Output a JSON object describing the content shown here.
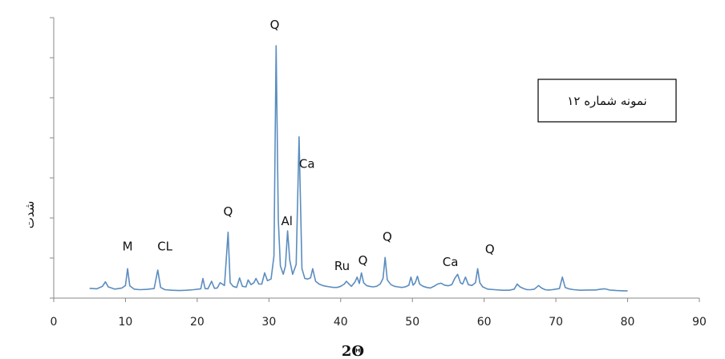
{
  "chart_data": {
    "type": "line",
    "title": "",
    "xlabel": "2Θ",
    "ylabel": "شدت",
    "xlim": [
      0,
      90
    ],
    "xticks": [
      "0",
      "10",
      "20",
      "30",
      "40",
      "50",
      "60",
      "70",
      "80",
      "90"
    ],
    "ylim": [
      0,
      100
    ],
    "grid": false,
    "legend_box": {
      "text": "نمونه شماره ۱۲",
      "position": "top-right"
    },
    "series": [
      {
        "color": "#5b8dbf",
        "x": [
          5.0,
          6.0,
          6.8,
          7.2,
          7.6,
          8.5,
          9.5,
          10.0,
          10.3,
          10.6,
          11.2,
          12.0,
          13.0,
          14.0,
          14.5,
          14.9,
          15.5,
          16.5,
          17.5,
          18.5,
          19.5,
          20.5,
          20.8,
          21.1,
          21.5,
          22.0,
          22.4,
          22.8,
          23.2,
          23.8,
          24.3,
          24.6,
          25.0,
          25.5,
          25.9,
          26.3,
          26.8,
          27.1,
          27.5,
          27.9,
          28.2,
          28.6,
          29.0,
          29.4,
          29.8,
          30.3,
          30.7,
          31.0,
          31.3,
          31.6,
          32.0,
          32.3,
          32.6,
          32.9,
          33.3,
          33.8,
          34.2,
          34.6,
          35.0,
          35.4,
          35.8,
          36.1,
          36.5,
          37.0,
          37.5,
          38.0,
          38.5,
          39.0,
          39.5,
          40.0,
          40.5,
          40.8,
          41.1,
          41.5,
          42.0,
          42.3,
          42.6,
          42.9,
          43.2,
          43.6,
          44.0,
          44.5,
          45.0,
          45.5,
          45.9,
          46.2,
          46.5,
          47.0,
          47.5,
          48.0,
          48.5,
          49.0,
          49.5,
          49.8,
          50.1,
          50.4,
          50.7,
          51.0,
          51.5,
          52.0,
          52.5,
          53.0,
          53.5,
          54.0,
          54.5,
          55.0,
          55.5,
          55.9,
          56.3,
          56.7,
          57.0,
          57.4,
          57.8,
          58.3,
          58.8,
          59.1,
          59.4,
          59.8,
          60.5,
          61.5,
          62.5,
          63.5,
          64.2,
          64.6,
          65.0,
          65.5,
          66.0,
          66.5,
          67.0,
          67.6,
          68.0,
          68.5,
          69.0,
          69.5,
          70.0,
          70.5,
          70.9,
          71.3,
          71.8,
          72.5,
          73.5,
          74.5,
          75.5,
          76.3,
          76.8,
          77.5,
          78.5,
          79.5,
          80.0
        ],
        "y": [
          3.5,
          3.3,
          4.2,
          5.8,
          4.0,
          3.2,
          3.6,
          4.5,
          10.5,
          4.4,
          3.2,
          3.0,
          3.1,
          3.4,
          10.0,
          3.8,
          3.0,
          2.8,
          2.7,
          2.8,
          3.0,
          3.3,
          7.0,
          3.4,
          3.3,
          6.0,
          3.5,
          3.6,
          5.5,
          4.5,
          23.5,
          5.5,
          4.2,
          3.8,
          7.2,
          4.2,
          4.0,
          6.5,
          4.8,
          5.5,
          7.0,
          5.0,
          5.0,
          9.0,
          6.2,
          6.8,
          15.0,
          90.0,
          28.0,
          11.5,
          8.5,
          11.5,
          24.0,
          13.5,
          8.5,
          12.0,
          57.5,
          10.5,
          7.0,
          6.8,
          7.2,
          10.5,
          6.0,
          5.0,
          4.5,
          4.2,
          4.0,
          3.8,
          3.8,
          4.2,
          5.0,
          6.0,
          5.2,
          4.2,
          5.8,
          7.5,
          5.2,
          9.0,
          5.5,
          4.5,
          4.2,
          4.0,
          4.2,
          5.0,
          7.0,
          14.5,
          6.5,
          4.8,
          4.2,
          4.0,
          3.8,
          4.0,
          4.6,
          7.5,
          4.6,
          5.5,
          7.8,
          5.0,
          4.2,
          3.8,
          3.6,
          4.2,
          5.0,
          5.3,
          4.6,
          4.4,
          4.8,
          7.0,
          8.5,
          5.5,
          5.0,
          7.5,
          4.8,
          4.5,
          5.5,
          10.5,
          5.5,
          4.0,
          3.2,
          3.0,
          2.8,
          2.8,
          3.2,
          5.0,
          4.0,
          3.4,
          3.0,
          3.0,
          3.2,
          4.5,
          3.6,
          3.0,
          2.9,
          3.0,
          3.2,
          3.4,
          7.5,
          3.8,
          3.3,
          3.0,
          2.8,
          2.9,
          2.9,
          3.2,
          3.3,
          2.9,
          2.7,
          2.6,
          2.6
        ]
      }
    ],
    "annotations": [
      {
        "text": "M",
        "x": 10.3,
        "y": 17
      },
      {
        "text": "CL",
        "x": 15.5,
        "y": 17
      },
      {
        "text": "Q",
        "x": 24.3,
        "y": 29.5
      },
      {
        "text": "Q",
        "x": 30.8,
        "y": 96
      },
      {
        "text": "Ca",
        "x": 35.3,
        "y": 46.5
      },
      {
        "text": "Al",
        "x": 32.5,
        "y": 26
      },
      {
        "text": "Ru",
        "x": 40.2,
        "y": 10
      },
      {
        "text": "Q",
        "x": 43.1,
        "y": 12
      },
      {
        "text": "Q",
        "x": 46.5,
        "y": 20.5
      },
      {
        "text": "Ca",
        "x": 55.3,
        "y": 11.5
      },
      {
        "text": "Q",
        "x": 60.8,
        "y": 16
      }
    ]
  }
}
